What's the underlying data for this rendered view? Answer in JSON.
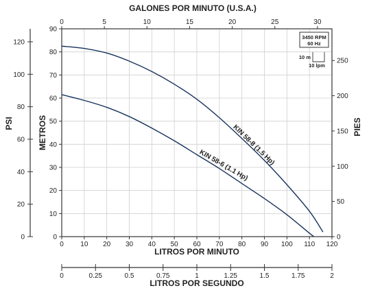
{
  "chart_data": {
    "type": "line",
    "titles": {
      "top_axis": "GALONES POR MINUTO (U.S.A.)",
      "bottom_axis": "LITROS POR MINUTO",
      "second_bottom_axis": "LITROS POR SEGUNDO",
      "left_outer_axis": "PSI",
      "left_inner_axis": "METROS",
      "right_axis": "PIES"
    },
    "axes": {
      "lpm": {
        "min": 0,
        "max": 120,
        "ticks": [
          "0",
          "10",
          "20",
          "30",
          "40",
          "50",
          "60",
          "70",
          "80",
          "90",
          "100",
          "110",
          "120"
        ]
      },
      "gpm": {
        "min": 0,
        "max": 31.7,
        "ticks": [
          "0",
          "5",
          "10",
          "15",
          "20",
          "25",
          "30"
        ]
      },
      "lps": {
        "min": 0,
        "max": 2,
        "ticks": [
          "0",
          "0.25",
          "0.5",
          "0.75",
          "1",
          "1.25",
          "1.5",
          "1.75",
          "2"
        ]
      },
      "metros": {
        "min": 0,
        "max": 90,
        "ticks": [
          "0",
          "10",
          "20",
          "30",
          "40",
          "50",
          "60",
          "70",
          "80",
          "90"
        ]
      },
      "psi": {
        "min": 0,
        "max": 128,
        "ticks": [
          "0",
          "20",
          "40",
          "60",
          "80",
          "100",
          "120"
        ]
      },
      "pies": {
        "min": 0,
        "max": 295,
        "ticks": [
          "0",
          "50",
          "100",
          "150",
          "200",
          "250"
        ]
      }
    },
    "series": [
      {
        "name": "KIN 58-8 (1.5 Hp)",
        "x": [
          0,
          10,
          20,
          30,
          40,
          50,
          60,
          70,
          80,
          90,
          100,
          110,
          116
        ],
        "y": [
          82.5,
          81.5,
          79.5,
          76,
          71.5,
          66,
          59.5,
          51.5,
          42.5,
          33,
          22.5,
          11,
          2
        ]
      },
      {
        "name": "KIN 58-6 (1.1 Hp)",
        "x": [
          0,
          10,
          20,
          30,
          40,
          50,
          60,
          70,
          80,
          90,
          100,
          110,
          112
        ],
        "y": [
          61.5,
          59,
          56,
          52,
          47,
          41.5,
          35.5,
          29.5,
          23,
          16.5,
          9.5,
          1.5,
          0
        ]
      }
    ],
    "legend_note": {
      "line1": "3450 RPM",
      "line2": "60 Hz",
      "scale_a": "10 m",
      "scale_b": "10 lpm"
    },
    "grid": true
  }
}
